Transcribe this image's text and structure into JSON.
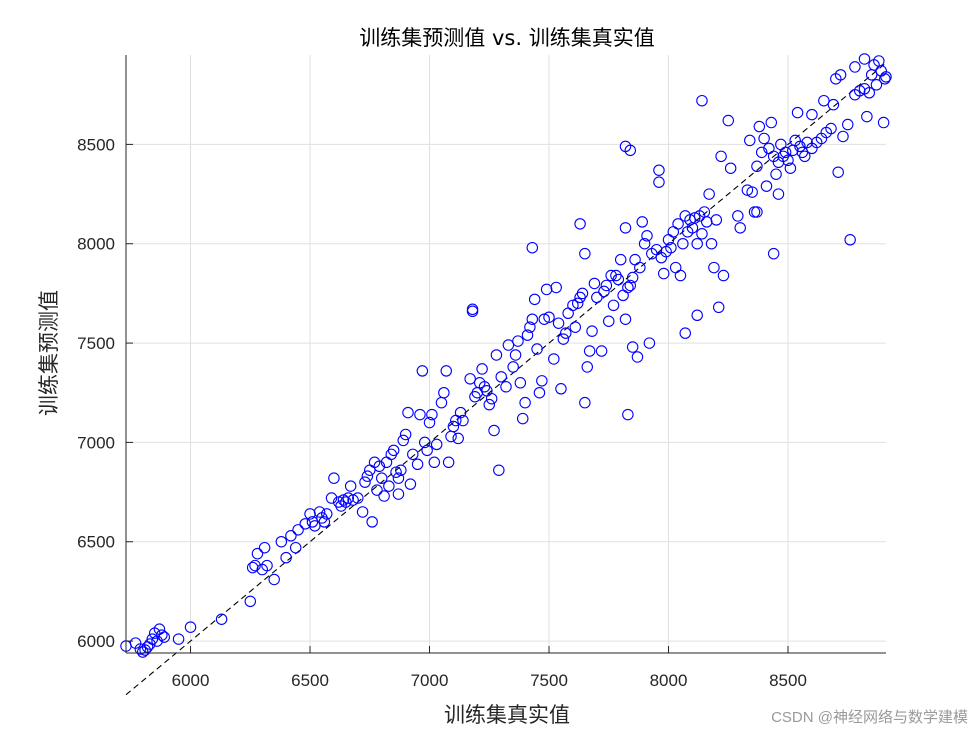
{
  "watermark": "CSDN @神经网络与数学建模",
  "chart_data": {
    "type": "scatter",
    "title": "训练集预测值 vs. 训练集真实值",
    "xlabel": "训练集真实值",
    "ylabel": "训练集预测值",
    "xlim": [
      5730,
      8910
    ],
    "ylim": [
      5940,
      8950
    ],
    "xticks": [
      6000,
      6500,
      7000,
      7500,
      8000,
      8500
    ],
    "yticks": [
      6000,
      6500,
      7000,
      7500,
      8000,
      8500
    ],
    "grid": true,
    "reference_line": {
      "style": "dashed",
      "color": "#000000",
      "from": [
        5730,
        5730
      ],
      "to": [
        8910,
        8910
      ]
    },
    "marker": {
      "shape": "open-circle",
      "color": "#0000ff"
    },
    "points": [
      [
        5730,
        5975
      ],
      [
        5770,
        5990
      ],
      [
        5790,
        5960
      ],
      [
        5800,
        5945
      ],
      [
        5810,
        5955
      ],
      [
        5820,
        5970
      ],
      [
        5830,
        5985
      ],
      [
        5840,
        6010
      ],
      [
        5850,
        6040
      ],
      [
        5860,
        6000
      ],
      [
        5870,
        6060
      ],
      [
        5880,
        6030
      ],
      [
        5890,
        6020
      ],
      [
        5950,
        6010
      ],
      [
        6000,
        6070
      ],
      [
        6130,
        6110
      ],
      [
        6250,
        6200
      ],
      [
        6260,
        6370
      ],
      [
        6270,
        6380
      ],
      [
        6280,
        6440
      ],
      [
        6300,
        6360
      ],
      [
        6310,
        6470
      ],
      [
        6320,
        6380
      ],
      [
        6350,
        6310
      ],
      [
        6380,
        6500
      ],
      [
        6400,
        6420
      ],
      [
        6420,
        6530
      ],
      [
        6440,
        6470
      ],
      [
        6450,
        6560
      ],
      [
        6480,
        6590
      ],
      [
        6500,
        6640
      ],
      [
        6510,
        6600
      ],
      [
        6520,
        6580
      ],
      [
        6540,
        6650
      ],
      [
        6550,
        6620
      ],
      [
        6560,
        6600
      ],
      [
        6570,
        6640
      ],
      [
        6590,
        6720
      ],
      [
        6600,
        6820
      ],
      [
        6620,
        6700
      ],
      [
        6630,
        6680
      ],
      [
        6640,
        6710
      ],
      [
        6650,
        6700
      ],
      [
        6660,
        6720
      ],
      [
        6670,
        6780
      ],
      [
        6680,
        6710
      ],
      [
        6700,
        6720
      ],
      [
        6720,
        6650
      ],
      [
        6730,
        6800
      ],
      [
        6740,
        6830
      ],
      [
        6750,
        6860
      ],
      [
        6760,
        6600
      ],
      [
        6770,
        6900
      ],
      [
        6780,
        6760
      ],
      [
        6790,
        6880
      ],
      [
        6800,
        6820
      ],
      [
        6810,
        6730
      ],
      [
        6820,
        6900
      ],
      [
        6830,
        6780
      ],
      [
        6840,
        6940
      ],
      [
        6850,
        6960
      ],
      [
        6860,
        6850
      ],
      [
        6870,
        6740
      ],
      [
        6870,
        6820
      ],
      [
        6880,
        6860
      ],
      [
        6890,
        7010
      ],
      [
        6900,
        7040
      ],
      [
        6910,
        7150
      ],
      [
        6920,
        6790
      ],
      [
        6930,
        6940
      ],
      [
        6950,
        6890
      ],
      [
        6960,
        7140
      ],
      [
        6970,
        7360
      ],
      [
        6980,
        7000
      ],
      [
        6990,
        6960
      ],
      [
        7000,
        7100
      ],
      [
        7010,
        7140
      ],
      [
        7020,
        6900
      ],
      [
        7030,
        6990
      ],
      [
        7050,
        7200
      ],
      [
        7060,
        7250
      ],
      [
        7070,
        7360
      ],
      [
        7080,
        6900
      ],
      [
        7090,
        7030
      ],
      [
        7100,
        7080
      ],
      [
        7110,
        7110
      ],
      [
        7120,
        7020
      ],
      [
        7130,
        7150
      ],
      [
        7140,
        7110
      ],
      [
        7170,
        7320
      ],
      [
        7180,
        7670
      ],
      [
        7190,
        7230
      ],
      [
        7200,
        7250
      ],
      [
        7210,
        7300
      ],
      [
        7220,
        7370
      ],
      [
        7230,
        7280
      ],
      [
        7240,
        7260
      ],
      [
        7250,
        7190
      ],
      [
        7260,
        7220
      ],
      [
        7270,
        7060
      ],
      [
        7280,
        7440
      ],
      [
        7290,
        6860
      ],
      [
        7300,
        7330
      ],
      [
        7320,
        7280
      ],
      [
        7330,
        7490
      ],
      [
        7350,
        7380
      ],
      [
        7360,
        7440
      ],
      [
        7370,
        7510
      ],
      [
        7380,
        7300
      ],
      [
        7390,
        7120
      ],
      [
        7400,
        7200
      ],
      [
        7410,
        7540
      ],
      [
        7420,
        7580
      ],
      [
        7430,
        7620
      ],
      [
        7440,
        7720
      ],
      [
        7450,
        7470
      ],
      [
        7460,
        7250
      ],
      [
        7470,
        7310
      ],
      [
        7480,
        7620
      ],
      [
        7490,
        7770
      ],
      [
        7500,
        7630
      ],
      [
        7520,
        7420
      ],
      [
        7530,
        7780
      ],
      [
        7540,
        7600
      ],
      [
        7550,
        7270
      ],
      [
        7560,
        7520
      ],
      [
        7570,
        7550
      ],
      [
        7580,
        7650
      ],
      [
        7600,
        7690
      ],
      [
        7610,
        7580
      ],
      [
        7620,
        7700
      ],
      [
        7630,
        7730
      ],
      [
        7640,
        7750
      ],
      [
        7650,
        7200
      ],
      [
        7660,
        7380
      ],
      [
        7670,
        7460
      ],
      [
        7680,
        7560
      ],
      [
        7690,
        7800
      ],
      [
        7700,
        7730
      ],
      [
        7720,
        7460
      ],
      [
        7730,
        7760
      ],
      [
        7740,
        7790
      ],
      [
        7750,
        7610
      ],
      [
        7760,
        7840
      ],
      [
        7770,
        7690
      ],
      [
        7780,
        7840
      ],
      [
        7790,
        7820
      ],
      [
        7800,
        7920
      ],
      [
        7810,
        7740
      ],
      [
        7820,
        8080
      ],
      [
        7820,
        7620
      ],
      [
        7830,
        7780
      ],
      [
        7840,
        7790
      ],
      [
        7850,
        7830
      ],
      [
        7850,
        7480
      ],
      [
        7860,
        7920
      ],
      [
        7870,
        7430
      ],
      [
        7880,
        7880
      ],
      [
        7890,
        8110
      ],
      [
        7900,
        8000
      ],
      [
        7910,
        8040
      ],
      [
        7920,
        7500
      ],
      [
        7930,
        7950
      ],
      [
        7950,
        7970
      ],
      [
        7960,
        8370
      ],
      [
        7970,
        7930
      ],
      [
        7980,
        7850
      ],
      [
        7990,
        7960
      ],
      [
        8000,
        8020
      ],
      [
        8010,
        7980
      ],
      [
        8020,
        8060
      ],
      [
        8030,
        7880
      ],
      [
        8040,
        8100
      ],
      [
        8050,
        7840
      ],
      [
        8060,
        8000
      ],
      [
        8070,
        8140
      ],
      [
        8080,
        8060
      ],
      [
        8090,
        8120
      ],
      [
        8100,
        8080
      ],
      [
        8110,
        8130
      ],
      [
        8120,
        8000
      ],
      [
        8130,
        8140
      ],
      [
        8140,
        8050
      ],
      [
        8150,
        8160
      ],
      [
        8160,
        8110
      ],
      [
        8170,
        8250
      ],
      [
        8180,
        8000
      ],
      [
        8190,
        7880
      ],
      [
        8200,
        8120
      ],
      [
        8210,
        7680
      ],
      [
        8220,
        8440
      ],
      [
        8230,
        7840
      ],
      [
        8250,
        8620
      ],
      [
        8260,
        8380
      ],
      [
        8290,
        8140
      ],
      [
        8300,
        8080
      ],
      [
        8330,
        8270
      ],
      [
        8340,
        8520
      ],
      [
        8350,
        8260
      ],
      [
        8360,
        8160
      ],
      [
        8370,
        8390
      ],
      [
        8380,
        8590
      ],
      [
        8390,
        8460
      ],
      [
        8400,
        8530
      ],
      [
        8410,
        8290
      ],
      [
        8420,
        8480
      ],
      [
        8430,
        8610
      ],
      [
        8440,
        8440
      ],
      [
        8450,
        8350
      ],
      [
        8460,
        8410
      ],
      [
        8470,
        8500
      ],
      [
        8480,
        8440
      ],
      [
        8490,
        8460
      ],
      [
        8500,
        8420
      ],
      [
        8510,
        8380
      ],
      [
        8520,
        8470
      ],
      [
        8530,
        8520
      ],
      [
        8540,
        8660
      ],
      [
        8550,
        8490
      ],
      [
        8560,
        8460
      ],
      [
        8570,
        8440
      ],
      [
        8580,
        8510
      ],
      [
        8600,
        8480
      ],
      [
        8620,
        8510
      ],
      [
        8640,
        8530
      ],
      [
        8650,
        8720
      ],
      [
        8660,
        8560
      ],
      [
        8680,
        8580
      ],
      [
        8690,
        8700
      ],
      [
        8700,
        8830
      ],
      [
        8710,
        8360
      ],
      [
        8720,
        8850
      ],
      [
        8730,
        8540
      ],
      [
        8750,
        8600
      ],
      [
        8760,
        8020
      ],
      [
        8780,
        8750
      ],
      [
        8800,
        8770
      ],
      [
        8820,
        8780
      ],
      [
        8830,
        8640
      ],
      [
        8840,
        8760
      ],
      [
        8850,
        8850
      ],
      [
        8860,
        8900
      ],
      [
        8870,
        8800
      ],
      [
        8880,
        8920
      ],
      [
        8890,
        8870
      ],
      [
        8900,
        8610
      ],
      [
        8905,
        8830
      ],
      [
        8910,
        8840
      ],
      [
        8780,
        8890
      ],
      [
        8820,
        8930
      ],
      [
        7630,
        8100
      ],
      [
        7820,
        8490
      ],
      [
        7840,
        8470
      ],
      [
        7960,
        8310
      ],
      [
        8140,
        8720
      ],
      [
        7430,
        7980
      ],
      [
        7180,
        7660
      ],
      [
        7650,
        7950
      ],
      [
        8370,
        8160
      ],
      [
        8440,
        7950
      ],
      [
        8070,
        7550
      ],
      [
        7830,
        7140
      ],
      [
        8120,
        7640
      ],
      [
        8600,
        8650
      ],
      [
        8460,
        8250
      ]
    ]
  }
}
